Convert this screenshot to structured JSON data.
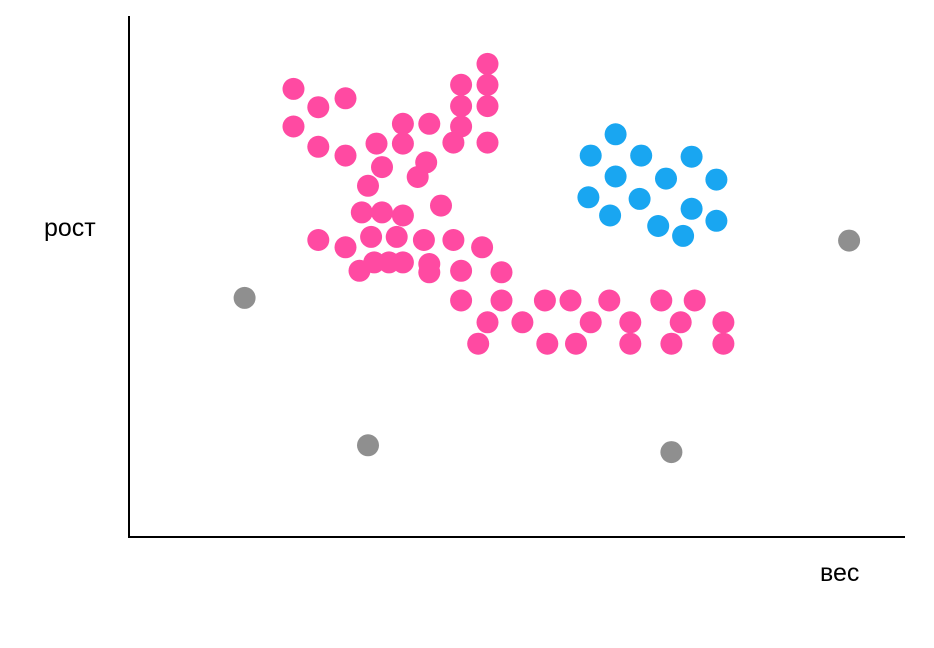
{
  "chart_data": {
    "type": "scatter",
    "title": "",
    "xlabel": "вес",
    "ylabel": "рост",
    "xlim": [
      0,
      100
    ],
    "ylim": [
      0,
      100
    ],
    "grid": false,
    "ticks": false,
    "colors": {
      "group_a": "#ff4aa2",
      "group_b": "#19a6f1",
      "outliers": "#8f8f8f",
      "axis": "#000000"
    },
    "series": [
      {
        "color_key": "group_a",
        "points": [
          [
            46.2,
            90.8
          ],
          [
            42.8,
            86.8
          ],
          [
            46.2,
            86.8
          ],
          [
            42.8,
            82.7
          ],
          [
            46.2,
            82.7
          ],
          [
            21.2,
            78.8
          ],
          [
            24.4,
            74.9
          ],
          [
            27.9,
            73.2
          ],
          [
            35.3,
            79.3
          ],
          [
            38.7,
            79.3
          ],
          [
            42.8,
            78.8
          ],
          [
            31.9,
            75.5
          ],
          [
            32.6,
            71.0
          ],
          [
            35.3,
            75.5
          ],
          [
            38.3,
            71.9
          ],
          [
            41.8,
            75.7
          ],
          [
            46.2,
            75.7
          ],
          [
            30.8,
            67.4
          ],
          [
            37.2,
            69.1
          ],
          [
            30.0,
            62.3
          ],
          [
            32.6,
            62.3
          ],
          [
            35.3,
            61.7
          ],
          [
            40.2,
            63.6
          ],
          [
            24.4,
            82.5
          ],
          [
            21.2,
            86.0
          ],
          [
            27.9,
            84.2
          ],
          [
            24.4,
            57.0
          ],
          [
            27.9,
            55.6
          ],
          [
            31.2,
            57.6
          ],
          [
            34.5,
            57.6
          ],
          [
            38.0,
            57.0
          ],
          [
            41.8,
            57.0
          ],
          [
            45.5,
            55.6
          ],
          [
            31.6,
            52.7
          ],
          [
            35.3,
            52.7
          ],
          [
            38.7,
            52.4
          ],
          [
            42.8,
            51.1
          ],
          [
            48.0,
            50.8
          ],
          [
            42.8,
            45.4
          ],
          [
            48.0,
            45.4
          ],
          [
            53.6,
            45.4
          ],
          [
            46.2,
            41.2
          ],
          [
            56.9,
            45.4
          ],
          [
            61.9,
            45.4
          ],
          [
            68.6,
            45.4
          ],
          [
            72.9,
            45.4
          ],
          [
            59.5,
            41.2
          ],
          [
            64.6,
            41.2
          ],
          [
            71.1,
            41.2
          ],
          [
            76.6,
            41.2
          ],
          [
            50.7,
            41.2
          ],
          [
            45.0,
            37.1
          ],
          [
            53.9,
            37.1
          ],
          [
            57.6,
            37.1
          ],
          [
            64.6,
            37.1
          ],
          [
            69.9,
            37.1
          ],
          [
            76.6,
            37.1
          ],
          [
            38.7,
            50.8
          ],
          [
            33.5,
            52.7
          ],
          [
            29.7,
            51.1
          ]
        ]
      },
      {
        "color_key": "group_b",
        "points": [
          [
            62.7,
            77.3
          ],
          [
            59.5,
            73.2
          ],
          [
            66.0,
            73.2
          ],
          [
            62.7,
            69.2
          ],
          [
            59.2,
            65.2
          ],
          [
            62.0,
            61.7
          ],
          [
            65.8,
            64.9
          ],
          [
            69.2,
            68.8
          ],
          [
            72.5,
            73.0
          ],
          [
            75.7,
            68.6
          ],
          [
            72.5,
            63.0
          ],
          [
            75.7,
            60.7
          ],
          [
            68.2,
            59.7
          ],
          [
            71.4,
            57.8
          ]
        ]
      },
      {
        "color_key": "outliers",
        "points": [
          [
            14.9,
            45.9
          ],
          [
            30.8,
            17.6
          ],
          [
            69.9,
            16.3
          ],
          [
            92.8,
            56.9
          ]
        ]
      }
    ]
  }
}
